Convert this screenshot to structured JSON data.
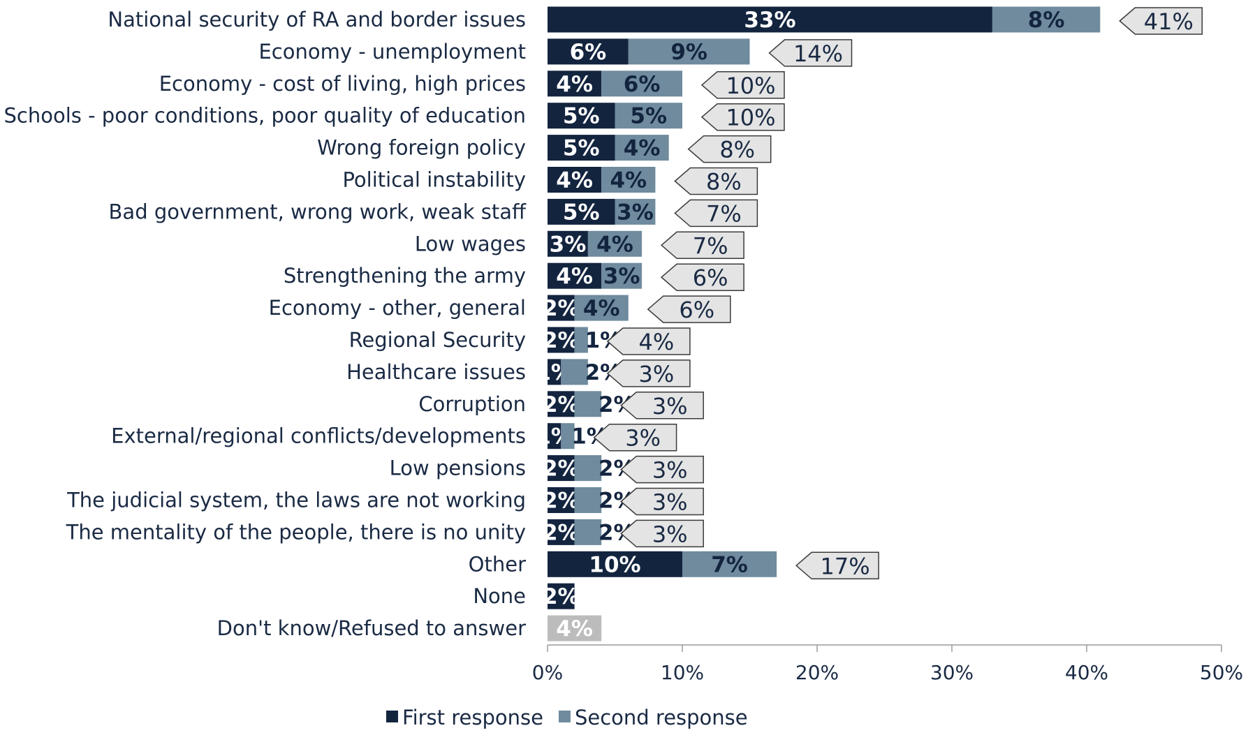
{
  "colors": {
    "first": "#13243f",
    "second": "#6f8b9d",
    "dontknow": "#bcbcbc",
    "callout_fill": "#e4e4e4",
    "callout_stroke": "#3a3a3a",
    "axis": "#9a9a9a",
    "text": "#1a2a44"
  },
  "chart_data": {
    "type": "bar",
    "orientation": "horizontal",
    "stacked": true,
    "xlim": [
      0,
      50
    ],
    "x_ticks": [
      "0%",
      "10%",
      "20%",
      "30%",
      "40%",
      "50%"
    ],
    "grid": false,
    "legend_position": "bottom",
    "categories": [
      "National security of RA and border issues",
      "Economy - unemployment",
      "Economy - cost of living, high prices",
      "Schools - poor conditions, poor quality of education",
      "Wrong foreign policy",
      "Political instability",
      "Bad government, wrong work, weak staff",
      "Low wages",
      "Strengthening the army",
      "Economy - other, general",
      "Regional Security",
      "Healthcare issues",
      "Corruption",
      "External/regional conflicts/developments",
      "Low pensions",
      "The judicial system, the laws are not working",
      "The mentality of the people, there is no unity",
      "Other",
      "None",
      "Don't know/Refused to answer"
    ],
    "series": [
      {
        "name": "First response",
        "values": [
          33,
          6,
          4,
          5,
          5,
          4,
          5,
          3,
          4,
          2,
          2,
          1,
          2,
          1,
          2,
          2,
          2,
          10,
          2,
          null
        ],
        "labels": [
          "33%",
          "6%",
          "4%",
          "5%",
          "5%",
          "4%",
          "5%",
          "3%",
          "4%",
          "2%",
          "2%",
          "1%",
          "2%",
          "1%",
          "2%",
          "2%",
          "2%",
          "10%",
          "2%",
          ""
        ]
      },
      {
        "name": "Second response",
        "values": [
          8,
          9,
          6,
          5,
          4,
          4,
          3,
          4,
          3,
          4,
          1,
          2,
          2,
          1,
          2,
          2,
          2,
          7,
          null,
          null
        ],
        "labels": [
          "8%",
          "9%",
          "6%",
          "5%",
          "4%",
          "4%",
          "3%",
          "4%",
          "3%",
          "4%",
          "1%",
          "2%",
          "2%",
          "1%",
          "2%",
          "2%",
          "2%",
          "7%",
          "",
          ""
        ]
      }
    ],
    "dont_know": {
      "value": 4,
      "label": "4%"
    },
    "totals": [
      "41%",
      "14%",
      "10%",
      "10%",
      "8%",
      "8%",
      "7%",
      "7%",
      "6%",
      "6%",
      "4%",
      "3%",
      "3%",
      "3%",
      "3%",
      "3%",
      "3%",
      "17%",
      "",
      ""
    ],
    "legend": [
      {
        "name": "First response",
        "color_key": "first"
      },
      {
        "name": "Second response",
        "color_key": "second"
      }
    ]
  }
}
